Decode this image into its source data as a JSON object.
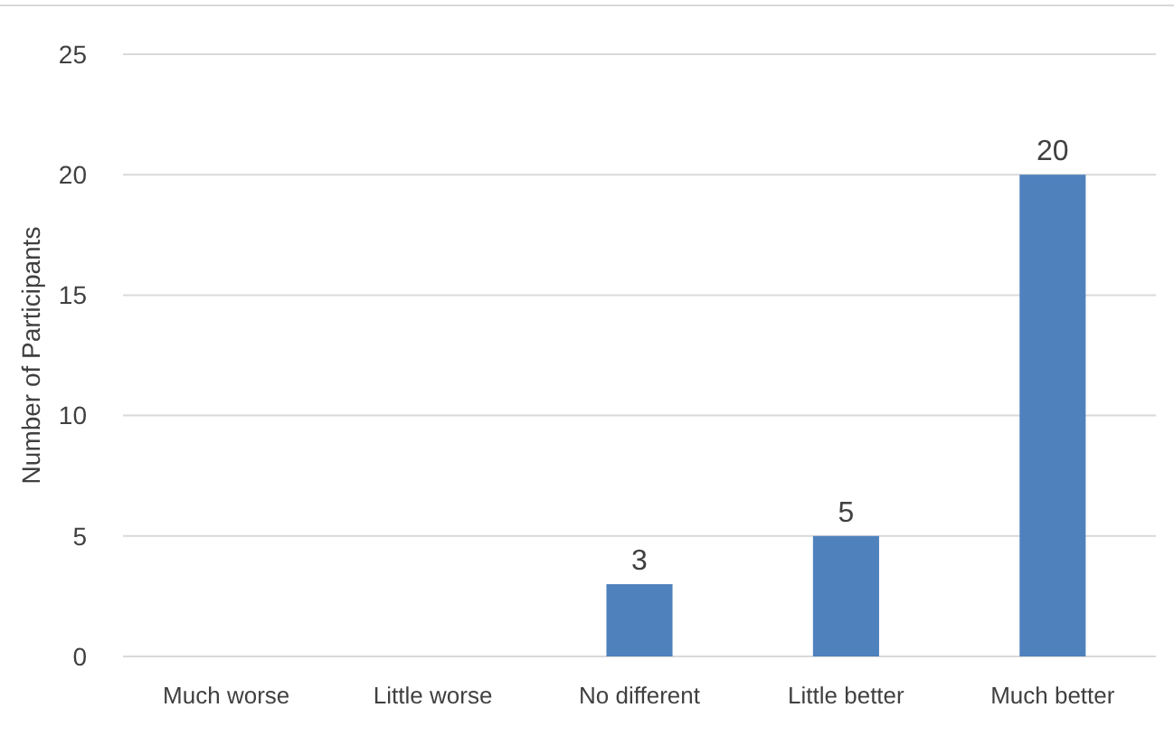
{
  "chart_data": {
    "type": "bar",
    "ylabel": "Number of Participants",
    "categories": [
      "Much worse",
      "Little worse",
      "No different",
      "Little better",
      "Much better"
    ],
    "values": [
      0,
      0,
      3,
      5,
      20
    ],
    "value_labels": [
      null,
      null,
      "3",
      "5",
      "20"
    ],
    "color": "#4f81bd",
    "ylim": [
      0,
      25
    ],
    "yticks": [
      0,
      5,
      10,
      15,
      20,
      25
    ],
    "grid": "y"
  }
}
